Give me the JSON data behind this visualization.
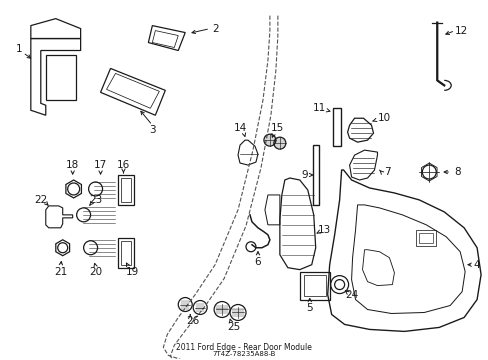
{
  "title": "2011 Ford Edge - Rear Door Module",
  "part_number": "7T4Z-78235A88-B",
  "bg": "#ffffff",
  "lc": "#1a1a1a",
  "fig_width": 4.89,
  "fig_height": 3.6,
  "dpi": 100
}
